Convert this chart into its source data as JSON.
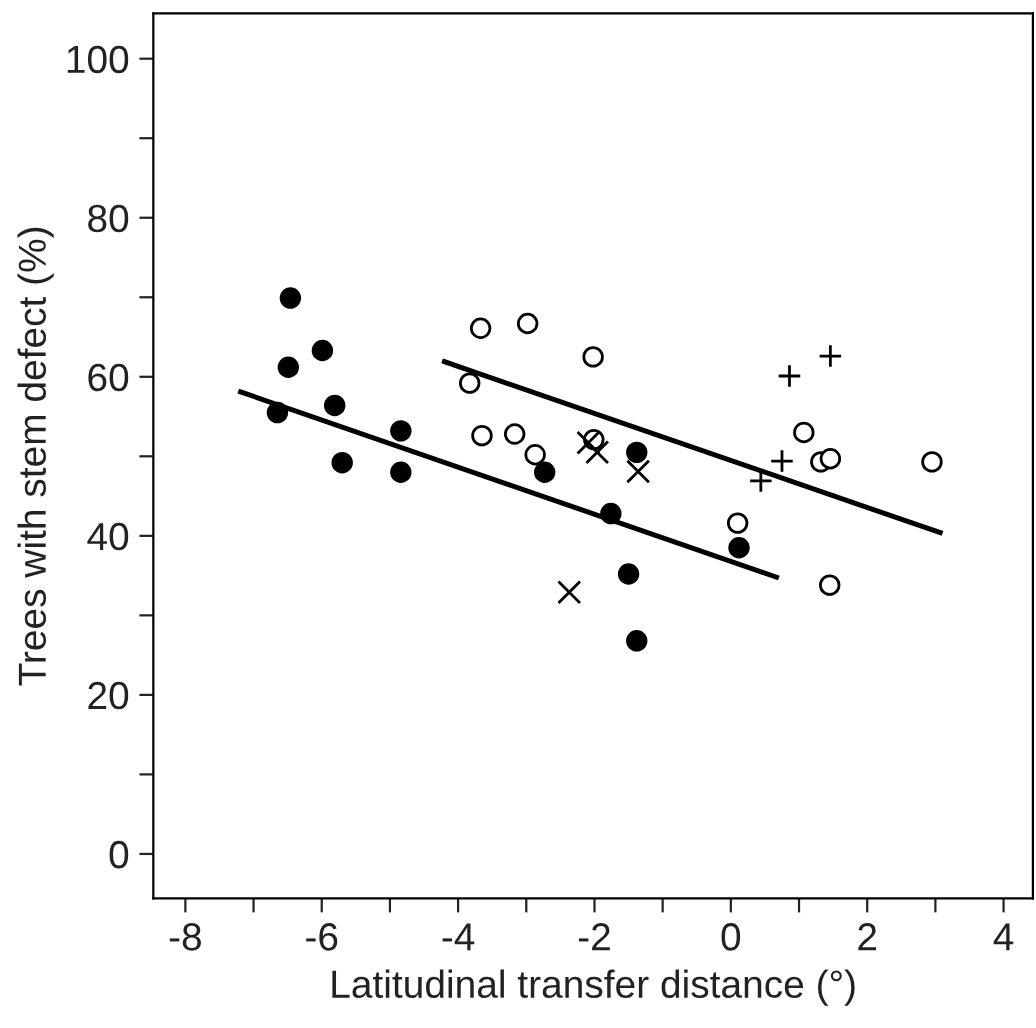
{
  "chart_data": {
    "type": "scatter",
    "xlabel": "Latitudinal transfer distance (°)",
    "ylabel": "Trees with stem defect (%)",
    "xlim": [
      -8.47,
      4.43
    ],
    "ylim": [
      -5.6,
      105.7
    ],
    "xticks": [
      -8,
      {
        "value": -7,
        "label": null
      },
      -6,
      {
        "value": -5,
        "label": null
      },
      -4,
      {
        "value": -3,
        "label": null
      },
      -2,
      {
        "value": -1,
        "label": null
      },
      0,
      {
        "value": 1,
        "label": null
      },
      2,
      {
        "value": 3,
        "label": null
      },
      4
    ],
    "yticks": [
      0,
      {
        "value": 10,
        "label": null
      },
      20,
      {
        "value": 30,
        "label": null
      },
      40,
      {
        "value": 50,
        "label": null
      },
      60,
      {
        "value": 70,
        "label": null
      },
      80,
      {
        "value": 90,
        "label": null
      },
      100
    ],
    "grid": false,
    "legend": false,
    "series": [
      {
        "marker": "circle",
        "color": "#000000",
        "x": [
          -6.46,
          -6.49,
          -5.99,
          -6.65,
          -5.81,
          -5.7,
          -4.84,
          -4.84,
          -2.73,
          -1.38,
          -1.76,
          0.12,
          -1.5,
          -1.38
        ],
        "values": [
          69.9,
          61.2,
          63.3,
          55.5,
          56.4,
          49.2,
          53.2,
          48.0,
          48.0,
          50.5,
          42.8,
          38.5,
          35.2,
          26.8
        ]
      },
      {
        "marker": "open circle",
        "color": "#000000",
        "x": [
          -3.67,
          -2.98,
          -3.83,
          -3.65,
          -3.17,
          -2.87,
          -2.02,
          -2.01,
          1.07,
          1.32,
          1.46,
          2.95,
          0.1,
          1.45
        ],
        "values": [
          66.1,
          66.7,
          59.2,
          52.6,
          52.8,
          50.2,
          62.5,
          52.1,
          53.0,
          49.3,
          49.7,
          49.3,
          41.6,
          33.8
        ]
      },
      {
        "marker": "cross",
        "color": "#000000",
        "x": [
          -2.09,
          -1.96,
          -1.36,
          -2.37
        ],
        "values": [
          51.7,
          50.5,
          48.1,
          32.9
        ]
      },
      {
        "marker": "plus",
        "color": "#000000",
        "x": [
          0.86,
          1.46,
          0.75,
          0.44
        ],
        "values": [
          60.1,
          62.6,
          49.4,
          46.9
        ]
      },
      {
        "type": "line",
        "marker": "none",
        "line_style": "solid",
        "color": "#000000",
        "x": [
          -7.19,
          0.67
        ],
        "values": [
          58.1,
          34.8
        ]
      },
      {
        "type": "line",
        "marker": "none",
        "line_style": "solid",
        "color": "#000000",
        "x": [
          -4.2,
          3.07
        ],
        "values": [
          61.9,
          40.4
        ]
      }
    ]
  }
}
